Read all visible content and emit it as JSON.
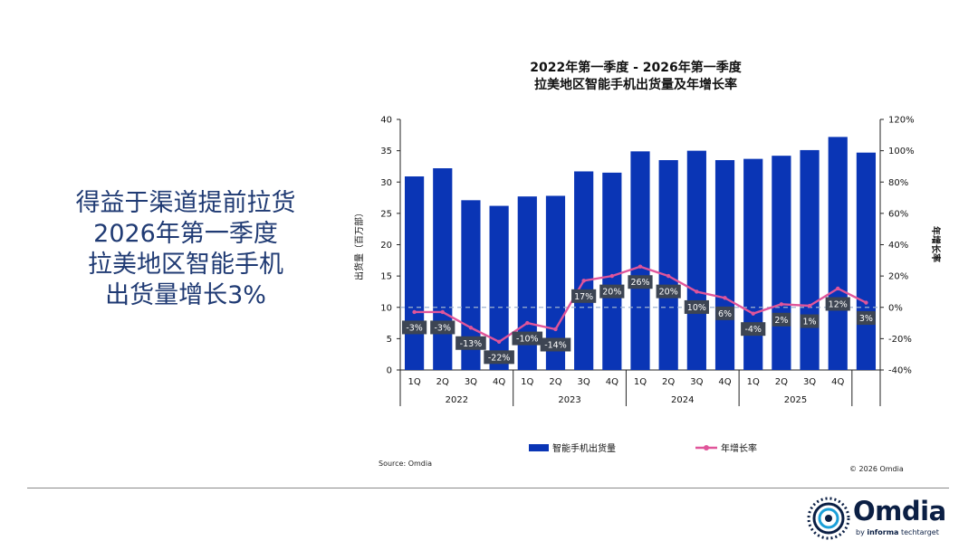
{
  "headline": {
    "lines": [
      "得益于渠道提前拉货",
      "2026年第一季度",
      "拉美地区智能手机",
      "出货量增长3%"
    ]
  },
  "footer": {
    "source": "Source: Omdia",
    "copyright": "© 2026 Omdia",
    "logo_word": "Omdia",
    "logo_sub_prefix": "by ",
    "logo_sub_brand": "informa",
    "logo_sub_suffix": " techtarget"
  },
  "colors": {
    "bar": "#0a35b5",
    "line": "#e0559a",
    "label_bg": "#3d4553",
    "headline": "#1f3a73",
    "zero_line": "#9fb3d0"
  },
  "chart_data": {
    "type": "bar",
    "title_lines": [
      "2022年第一季度 - 2026年第一季度",
      "拉美地区智能手机出货量及年增长率"
    ],
    "ylabel": "出货量（百万部）",
    "y2label": "年增长率",
    "ylim": [
      0,
      40
    ],
    "yticks": [
      "0",
      "5",
      "10",
      "15",
      "20",
      "25",
      "30",
      "35",
      "40"
    ],
    "y2lim": [
      -40,
      120
    ],
    "y2ticks": [
      "-40%",
      "-20%",
      "0%",
      "20%",
      "40%",
      "60%",
      "80%",
      "100%",
      "120%"
    ],
    "categories": [
      "1Q",
      "2Q",
      "3Q",
      "4Q",
      "1Q",
      "2Q",
      "3Q",
      "4Q",
      "1Q",
      "2Q",
      "3Q",
      "4Q",
      "1Q",
      "2Q",
      "3Q",
      "4Q",
      ""
    ],
    "year_groups": [
      {
        "label": "2022",
        "start": 0,
        "count": 4
      },
      {
        "label": "2023",
        "start": 4,
        "count": 4
      },
      {
        "label": "2024",
        "start": 8,
        "count": 4
      },
      {
        "label": "2025",
        "start": 12,
        "count": 4
      },
      {
        "label": "",
        "start": 16,
        "count": 1
      }
    ],
    "series": [
      {
        "name": "智能手机出货量",
        "axis": "left",
        "kind": "bar",
        "values": [
          30.9,
          32.2,
          27.1,
          26.2,
          27.7,
          27.8,
          31.7,
          31.5,
          34.9,
          33.5,
          35.0,
          33.5,
          33.7,
          34.2,
          35.1,
          37.2,
          34.7
        ]
      },
      {
        "name": "年增长率",
        "axis": "right",
        "kind": "line",
        "values": [
          -3,
          -3,
          -13,
          -22,
          -10,
          -14,
          17,
          20,
          26,
          20,
          10,
          6,
          -4,
          2,
          1,
          12,
          3
        ],
        "labels": [
          "-3%",
          "-3%",
          "-13%",
          "-22%",
          "-10%",
          "-14%",
          "17%",
          "20%",
          "26%",
          "20%",
          "10%",
          "6%",
          "-4%",
          "2%",
          "1%",
          "12%",
          "3%"
        ]
      }
    ],
    "legend": {
      "position": "bottom",
      "items": [
        "智能手机出货量",
        "年增长率"
      ]
    },
    "grid": false
  }
}
